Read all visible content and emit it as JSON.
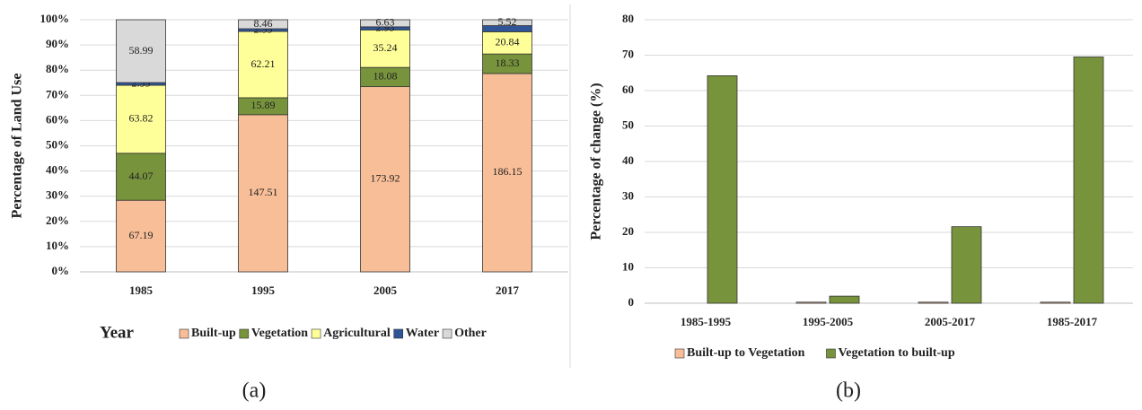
{
  "chart_data": [
    {
      "type": "bar",
      "stacking": "percent",
      "caption": "(a)",
      "ylabel": "Percentage of Land Use",
      "xlabel": "Year",
      "categories": [
        "1985",
        "1995",
        "2005",
        "2017"
      ],
      "series": [
        {
          "name": "Built-up",
          "color": "#f8be98",
          "values": [
            67.19,
            147.51,
            173.92,
            186.15
          ]
        },
        {
          "name": "Vegetation",
          "color": "#77933c",
          "values": [
            44.07,
            15.89,
            18.08,
            18.33
          ]
        },
        {
          "name": "Agricultural",
          "color": "#ffff99",
          "values": [
            63.82,
            62.21,
            35.24,
            20.84
          ]
        },
        {
          "name": "Water",
          "color": "#2f5597",
          "values": [
            2.53,
            2.55,
            2.93,
            5.76
          ],
          "value_labels": [
            "2.53",
            "2.55",
            "2.93",
            null
          ]
        },
        {
          "name": "Other",
          "color": "#d9d9d9",
          "values": [
            58.99,
            8.46,
            6.63,
            5.52
          ]
        }
      ],
      "ylim": [
        0,
        100
      ],
      "yticks": [
        {
          "value": 0,
          "label": "0%"
        },
        {
          "value": 10,
          "label": "10%"
        },
        {
          "value": 20,
          "label": "20%"
        },
        {
          "value": 30,
          "label": "30%"
        },
        {
          "value": 40,
          "label": "40%"
        },
        {
          "value": 50,
          "label": "50%"
        },
        {
          "value": 60,
          "label": "60%"
        },
        {
          "value": 70,
          "label": "70%"
        },
        {
          "value": 80,
          "label": "80%"
        },
        {
          "value": 90,
          "label": "90%"
        },
        {
          "value": 100,
          "label": "100%"
        }
      ],
      "grid": true
    },
    {
      "type": "bar",
      "stacking": "none",
      "caption": "(b)",
      "ylabel": "Percentage of change (%)",
      "categories": [
        "1985-1995",
        "1995-2005",
        "2005-2017",
        "1985-2017"
      ],
      "series": [
        {
          "name": "Built-up to Vegetation",
          "color": "#f8be98",
          "values": [
            0,
            0.3,
            0.3,
            0.3
          ]
        },
        {
          "name": "Vegetation to built-up",
          "color": "#77933c",
          "values": [
            64.2,
            2,
            21.6,
            69.5
          ]
        }
      ],
      "ylim": [
        0,
        80
      ],
      "yticks": [
        0,
        10,
        20,
        30,
        40,
        50,
        60,
        70,
        80
      ],
      "grid": true
    }
  ]
}
